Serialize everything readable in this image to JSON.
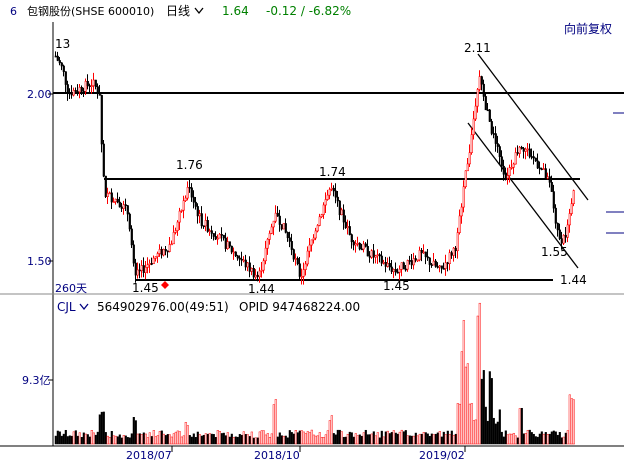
{
  "header": {
    "period_num": "6",
    "stock_name": "包钢股份(SHSE 600010)",
    "period_label": "日线",
    "price": "1.64",
    "change": "-0.12 / -6.82%"
  },
  "adjust_label": "向前复权",
  "main": {
    "y_ticks": [
      "2.00",
      "1.50"
    ],
    "days_label": "260天",
    "annotations": [
      "13",
      "2.11",
      "1.76",
      "1.74",
      "1.55",
      "1.45",
      "1.44",
      "1.45",
      "1.44"
    ]
  },
  "volume": {
    "label": "CJL",
    "value": "564902976.00(49:51)",
    "opid": "OPID 947468224.00",
    "y_tick": "9.3亿"
  },
  "x_ticks": [
    "2018/07",
    "2018/10",
    "2019/02"
  ],
  "colors": {
    "up": "#ff0000",
    "down": "#000000",
    "header_blue": "#000080",
    "green": "#008000"
  },
  "chart_data": {
    "type": "candlestick",
    "price_scale_labels": [
      2.0,
      1.5
    ],
    "annotated_levels": {
      "high": 2.11,
      "recent_low": 1.55,
      "lows": [
        1.45,
        1.44,
        1.45,
        1.44
      ],
      "mid_highs": [
        1.76,
        1.74
      ],
      "start_label": 13
    },
    "horizontal_lines": [
      2.0,
      1.74,
      1.44
    ],
    "volume_tick": "9.3亿",
    "x_labels": [
      "2018/07",
      "2018/10",
      "2019/02"
    ]
  }
}
